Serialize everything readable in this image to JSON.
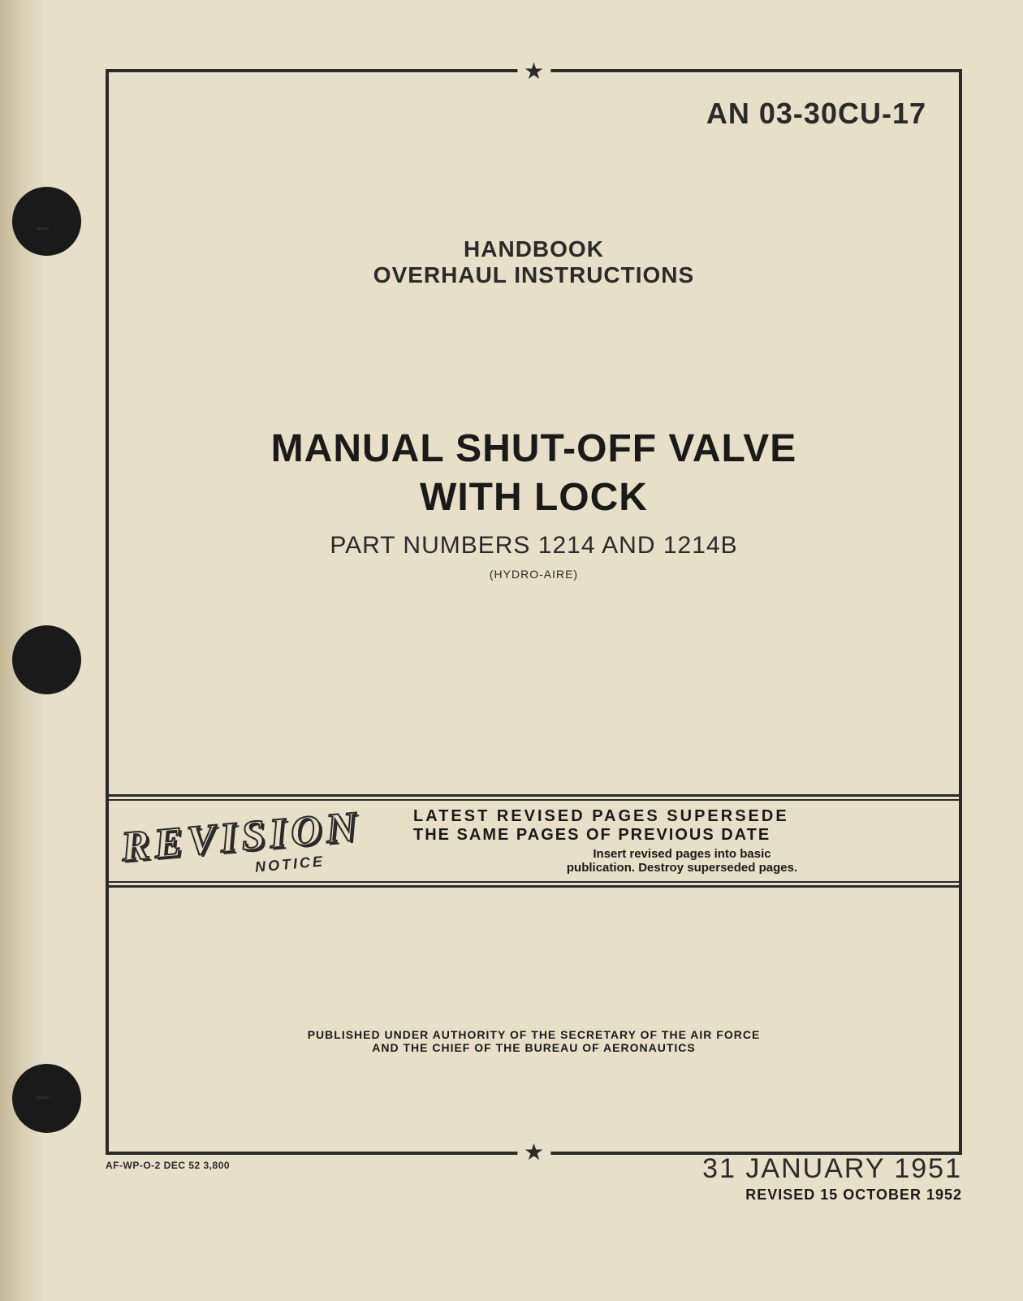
{
  "document": {
    "number": "AN 03-30CU-17",
    "handbook_line1": "HANDBOOK",
    "handbook_line2": "OVERHAUL INSTRUCTIONS",
    "title_line1": "MANUAL SHUT-OFF VALVE",
    "title_line2": "WITH LOCK",
    "part_numbers": "PART NUMBERS 1214 AND 1214B",
    "manufacturer": "(HYDRO-AIRE)"
  },
  "revision": {
    "graphic_text": "REVISION",
    "notice_text": "NOTICE",
    "line1": "LATEST REVISED PAGES SUPERSEDE",
    "line2": "THE SAME PAGES OF PREVIOUS DATE",
    "line3": "Insert revised pages into basic",
    "line4": "publication. Destroy superseded pages."
  },
  "authority": {
    "line1": "PUBLISHED UNDER AUTHORITY OF THE SECRETARY OF THE AIR FORCE",
    "line2": "AND THE CHIEF OF THE BUREAU OF AERONAUTICS"
  },
  "footer": {
    "print_code": "AF-WP-O-2 DEC 52 3,800",
    "date_main": "31 JANUARY 1951",
    "date_revised": "REVISED 15 OCTOBER 1952"
  },
  "styling": {
    "page_bg": "#e8dfc8",
    "text_color": "#2a2a2a",
    "bold_text_color": "#1a1a1a",
    "border_color": "#2a2a2a",
    "hole_color": "#1a1a1a",
    "title_fontsize": 48,
    "docnum_fontsize": 36,
    "handbook_fontsize": 28,
    "partnum_fontsize": 30,
    "date_fontsize": 34
  }
}
